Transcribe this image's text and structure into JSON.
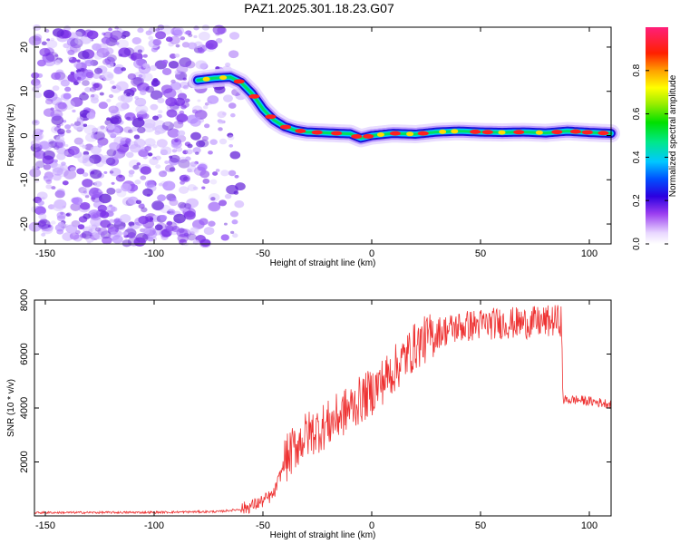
{
  "title": "PAZ1.2025.301.18.23.G07",
  "chart_data": [
    {
      "type": "heatmap",
      "name": "spectrogram",
      "xlabel": "Height of straight line (km)",
      "ylabel": "Frequency (Hz)",
      "xlim": [
        -155,
        110
      ],
      "ylim": [
        -24.5,
        24.5
      ],
      "xticks": [
        -150,
        -100,
        -50,
        0,
        50,
        100
      ],
      "yticks": [
        -20,
        -10,
        0,
        10,
        20
      ],
      "colorbar": {
        "label": "Normalized spectral amplitude",
        "range": [
          0.0,
          1.0
        ],
        "ticks": [
          0.0,
          0.2,
          0.4,
          0.6,
          0.8
        ],
        "tick_labels": [
          "0.0",
          "0.2",
          "0.4",
          "0.6",
          "0.8"
        ]
      },
      "ridge": {
        "height_km": [
          -80,
          -72,
          -65,
          -60,
          -55,
          -50,
          -45,
          -40,
          -35,
          -30,
          -20,
          -10,
          -5,
          0,
          10,
          20,
          30,
          40,
          50,
          60,
          70,
          80,
          90,
          100,
          110
        ],
        "frequency_hz": [
          12.5,
          13,
          13.2,
          12,
          9.5,
          6,
          3.5,
          2,
          1.2,
          0.8,
          0.6,
          0.4,
          -0.6,
          0.0,
          0.5,
          0.3,
          0.8,
          1.0,
          0.8,
          0.7,
          0.8,
          0.6,
          1.0,
          0.7,
          0.5
        ]
      },
      "noise_region_km": [
        -155,
        -60
      ]
    },
    {
      "type": "line",
      "name": "snr",
      "xlabel": "Height of straight line (km)",
      "ylabel": "SNR (10 * v/v)",
      "xlim": [
        -155,
        110
      ],
      "ylim": [
        0,
        8000
      ],
      "xticks": [
        -150,
        -100,
        -50,
        0,
        50,
        100
      ],
      "yticks": [
        2000,
        4000,
        6000,
        8000
      ],
      "color": "#ee3333",
      "trend": {
        "height_km": [
          -155,
          -100,
          -70,
          -60,
          -55,
          -50,
          -45,
          -40,
          -35,
          -30,
          -20,
          -10,
          0,
          10,
          20,
          30,
          40,
          50,
          60,
          70,
          80,
          87,
          88,
          95,
          110
        ],
        "snr": [
          120,
          130,
          160,
          250,
          380,
          550,
          800,
          2000,
          2600,
          3000,
          3400,
          4000,
          4600,
          5400,
          6300,
          6800,
          7000,
          7100,
          7150,
          7150,
          7200,
          7250,
          4300,
          4300,
          4150
        ]
      }
    }
  ]
}
